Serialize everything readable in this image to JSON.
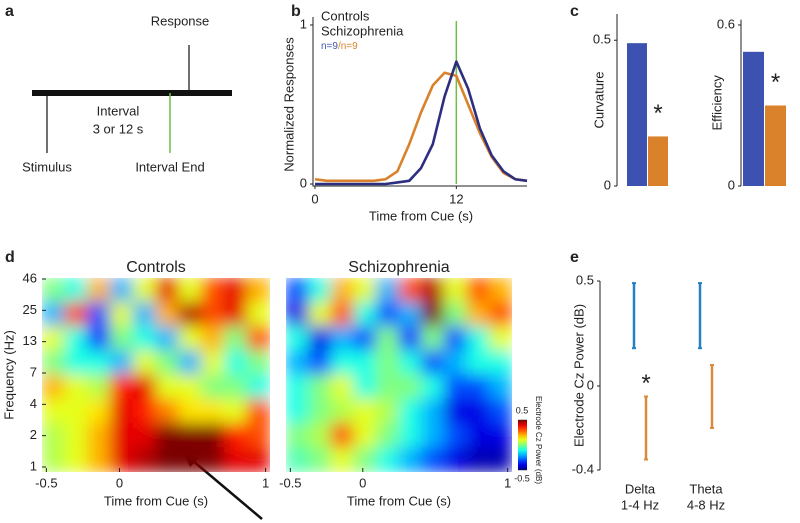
{
  "panel_labels": [
    "a",
    "b",
    "c",
    "d",
    "e"
  ],
  "diagram": {
    "response": "Response",
    "interval": "Interval",
    "duration": "3 or 12 s",
    "stimulus": "Stimulus",
    "interval_end": "Interval End"
  },
  "chart_data": [
    {
      "type": "line",
      "x_label": "Time from Cue (s)",
      "y_label": "Normalized Responses",
      "x": [
        0,
        1,
        2,
        3,
        4,
        5,
        6,
        7,
        8,
        9,
        10,
        11,
        12,
        13,
        14,
        15,
        16,
        17,
        18
      ],
      "series": [
        {
          "name": "Controls",
          "color": "#2c2f80",
          "legend_color": "#3f56b0",
          "values": [
            0,
            0,
            0,
            0,
            0,
            0,
            0,
            0.01,
            0.02,
            0.1,
            0.25,
            0.55,
            0.77,
            0.6,
            0.35,
            0.18,
            0.08,
            0.03,
            0.02
          ]
        },
        {
          "name": "Schizophrenia",
          "color": "#d9822b",
          "legend_color": "#d9822b",
          "values": [
            0.03,
            0.02,
            0.02,
            0.02,
            0.02,
            0.02,
            0.03,
            0.08,
            0.25,
            0.45,
            0.62,
            0.7,
            0.68,
            0.5,
            0.32,
            0.17,
            0.07,
            0.03,
            0.02
          ]
        }
      ],
      "annotation_parts": [
        "n=9",
        "/n=9"
      ],
      "marker_x": 12,
      "marker_color": "#6cc04a",
      "xlim": [
        0,
        18
      ],
      "xticks": [
        0,
        12
      ],
      "ylim": [
        0,
        1
      ],
      "yticks": [
        0,
        1
      ]
    },
    {
      "type": "bar",
      "y_label": "Curvature",
      "values": [
        0.49,
        0.17
      ],
      "colors": [
        "#3d52b0",
        "#d9822b"
      ],
      "annotation": "*",
      "ylim": [
        0,
        0.59
      ],
      "yticks": [
        0,
        0.5
      ]
    },
    {
      "type": "bar",
      "y_label": "Efficiency",
      "values": [
        0.5,
        0.3
      ],
      "colors": [
        "#3d52b0",
        "#d9822b"
      ],
      "annotation": "*",
      "ylim": [
        0,
        0.62
      ],
      "yticks": [
        0,
        0.6
      ]
    },
    {
      "type": "heatmap",
      "title": "Controls",
      "title_color": "#3f56b0",
      "x_label": "Time from Cue (s)",
      "y_label": "Frequency (Hz)",
      "xlim": [
        -0.53,
        1.03
      ],
      "xticks": [
        -0.5,
        0,
        1
      ],
      "yticks": [
        46,
        25,
        13,
        7,
        4,
        2,
        1
      ],
      "clim": [
        -0.5,
        0.5
      ],
      "values": [
        [
          0,
          -0.1,
          0.2,
          -0.2,
          0.1,
          0.4,
          0.1,
          0.3,
          0.4,
          0.2
        ],
        [
          -0.2,
          0.3,
          -0.3,
          0.1,
          -0.2,
          0.2,
          0.45,
          0.3,
          0.4,
          0.1
        ],
        [
          0.1,
          -0.1,
          -0.35,
          0,
          -0.1,
          -0.2,
          0.1,
          0.2,
          0,
          0.3
        ],
        [
          0,
          -0.1,
          -0.1,
          -0.2,
          0.1,
          0,
          -0.2,
          0.1,
          -0.1,
          0
        ],
        [
          0.2,
          0.1,
          0.05,
          0.35,
          0.4,
          0.1,
          0.1,
          0,
          0,
          -0.1
        ],
        [
          0.1,
          0.1,
          0.15,
          0.4,
          0.35,
          0.25,
          0.15,
          0.15,
          0.1,
          0.3
        ],
        [
          0.05,
          0.1,
          0.2,
          0.4,
          0.4,
          0.5,
          0.5,
          0.5,
          0.35,
          0.3
        ],
        [
          0.05,
          0.1,
          0.2,
          0.4,
          0.45,
          0.55,
          0.55,
          0.5,
          0.4,
          0.4
        ]
      ]
    },
    {
      "type": "heatmap",
      "title": "Schizophrenia",
      "title_color": "#d9822b",
      "x_label": "Time from Cue (s)",
      "xlim": [
        -0.53,
        1.03
      ],
      "xticks": [
        -0.5,
        0,
        1
      ],
      "clim": [
        -0.5,
        0.5
      ],
      "colorbar_label": "Electrode Cz Power (dB)",
      "colorbar_ticks": [
        0.5,
        -0.5
      ],
      "values": [
        [
          -0.3,
          -0.1,
          0.2,
          0.1,
          -0.2,
          0.3,
          0.45,
          0.1,
          0.3,
          0.2
        ],
        [
          -0.4,
          0.1,
          0.3,
          -0.1,
          -0.3,
          -0.2,
          0.5,
          0,
          0.2,
          0.3
        ],
        [
          -0.1,
          -0.4,
          -0.2,
          -0.3,
          0,
          -0.35,
          0,
          -0.3,
          -0.1,
          0.1
        ],
        [
          -0.2,
          -0.3,
          -0.1,
          -0.1,
          0,
          -0.1,
          -0.3,
          -0.2,
          -0.1,
          -0.1
        ],
        [
          -0.1,
          0,
          0.1,
          -0.1,
          0,
          0,
          -0.1,
          -0.3,
          -0.3,
          -0.2
        ],
        [
          -0.1,
          0,
          0.05,
          0.1,
          0.05,
          -0.1,
          -0.2,
          -0.4,
          -0.4,
          -0.3
        ],
        [
          0,
          0.05,
          0.3,
          0.1,
          0,
          -0.1,
          -0.2,
          -0.3,
          -0.4,
          -0.4
        ],
        [
          -0.05,
          0,
          0.1,
          0,
          -0.1,
          -0.2,
          -0.3,
          -0.4,
          -0.45,
          -0.45
        ]
      ]
    },
    {
      "type": "errorbar",
      "y_label": "Electrode Cz Power (dB)",
      "categories": [
        "Delta",
        "Theta"
      ],
      "category_sublabels": [
        "1-4 Hz",
        "4-8 Hz"
      ],
      "series": [
        {
          "color": "#2381c4",
          "low": [
            0.18,
            0.18
          ],
          "high": [
            0.49,
            0.49
          ]
        },
        {
          "color": "#d98a3a",
          "low": [
            -0.35,
            -0.2
          ],
          "high": [
            -0.05,
            0.1
          ]
        }
      ],
      "annotation": "*",
      "ylim": [
        -0.4,
        0.5
      ],
      "yticks": [
        -0.4,
        0,
        0.5
      ]
    }
  ]
}
